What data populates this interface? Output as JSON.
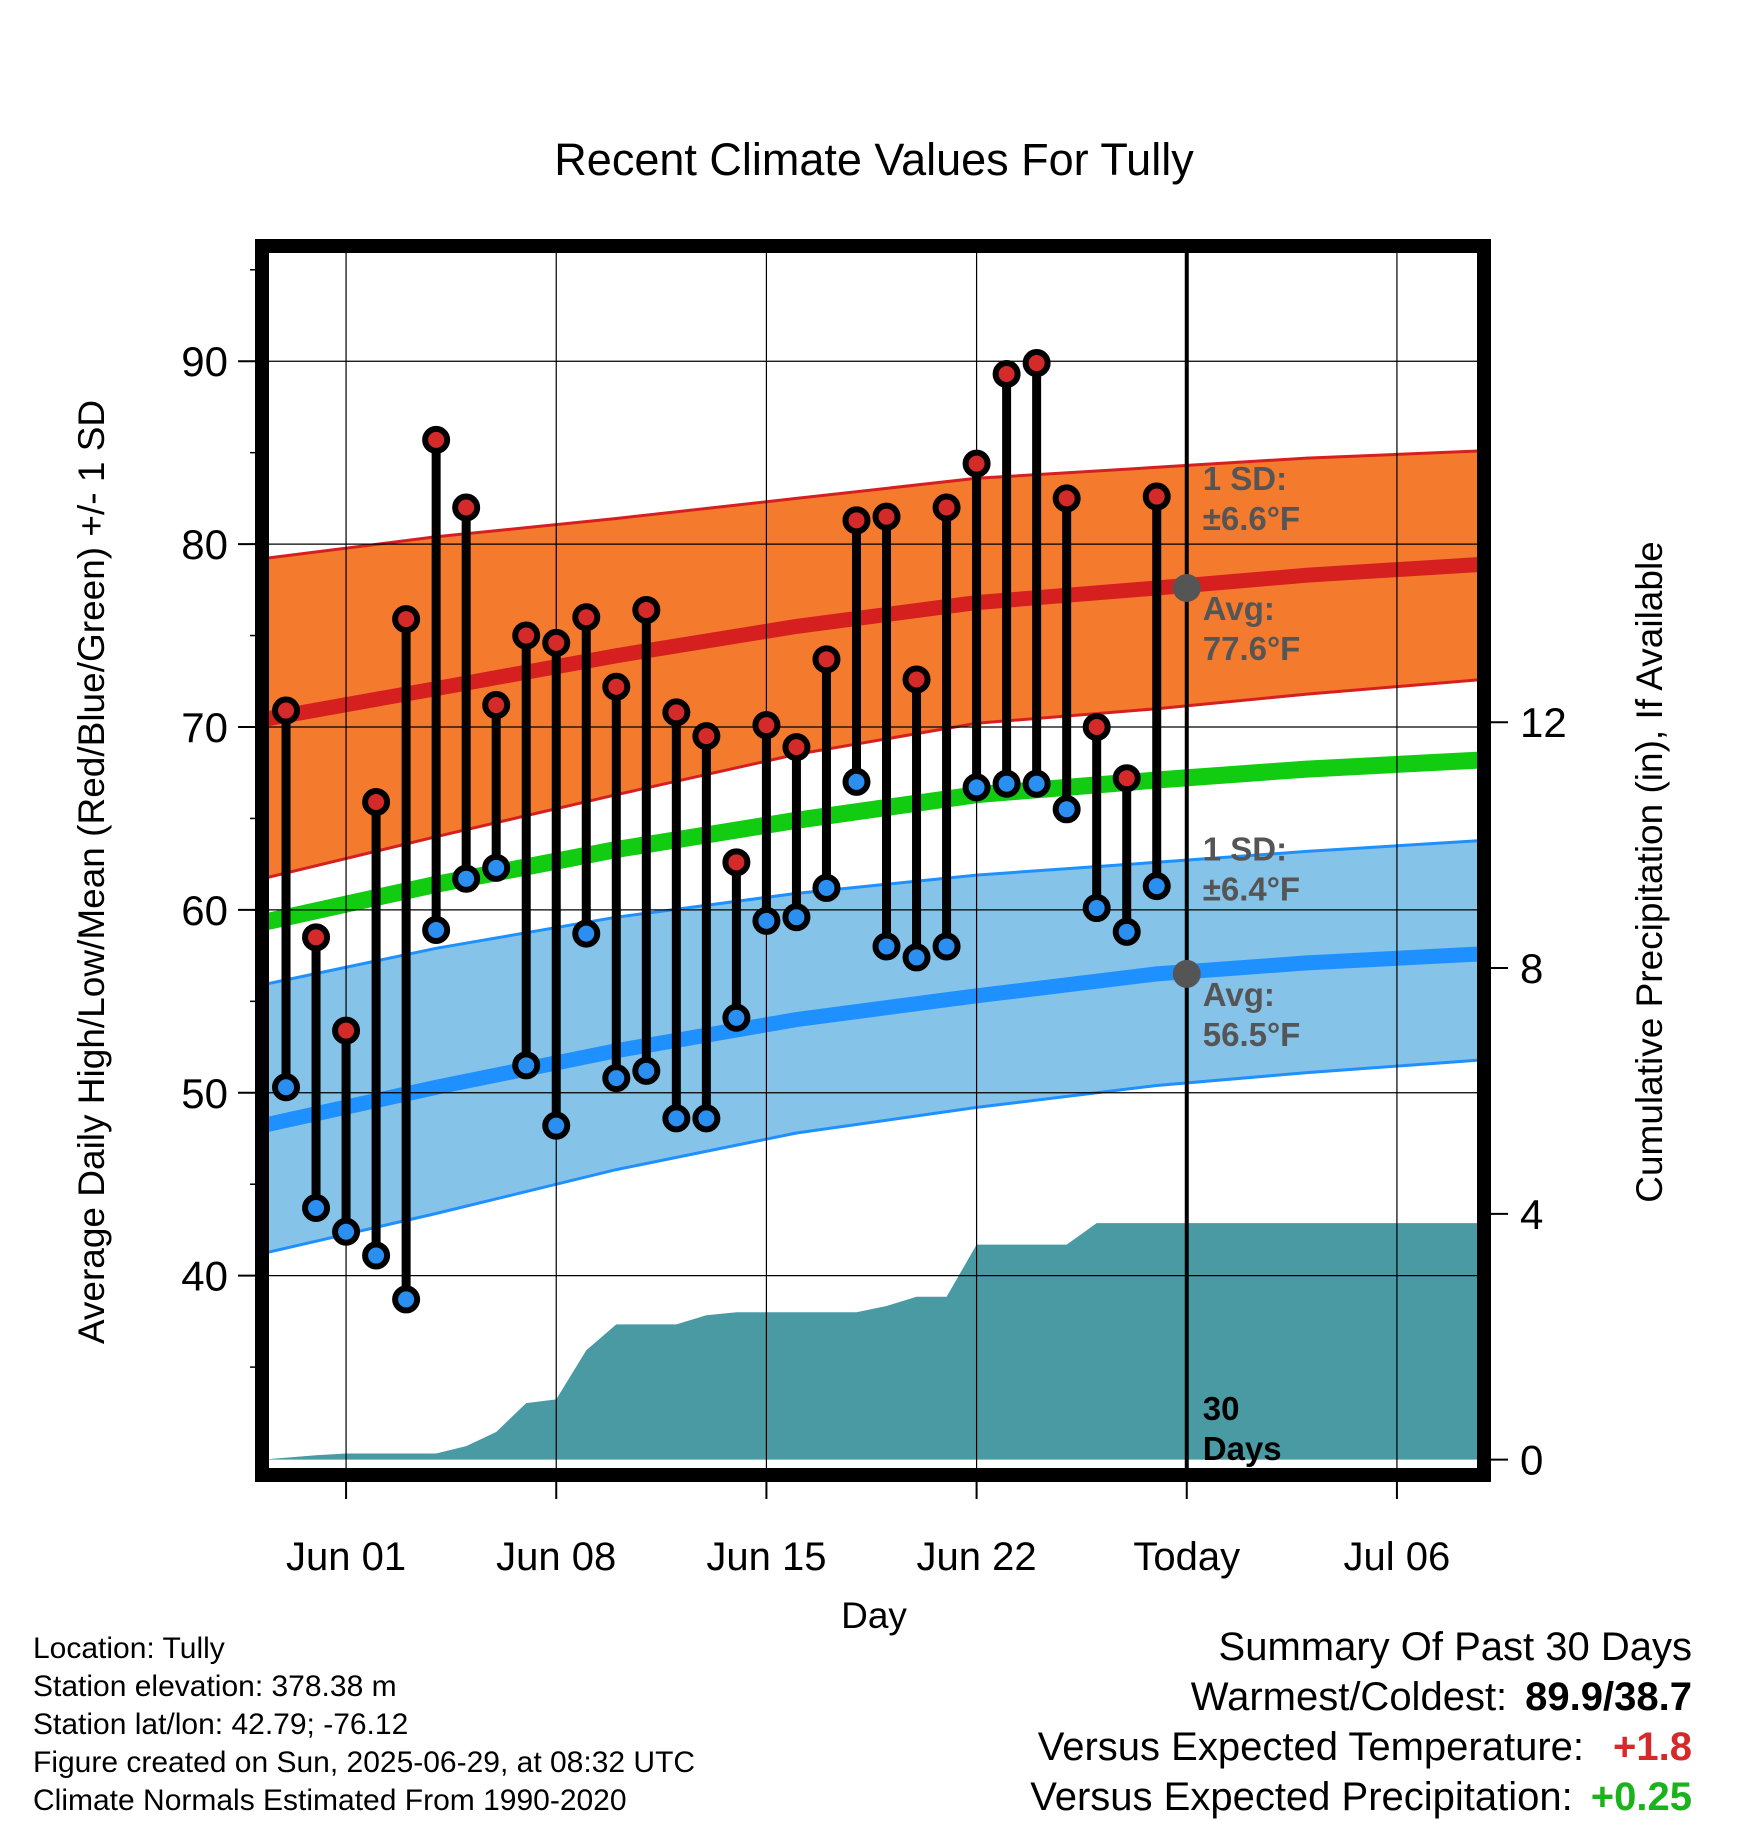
{
  "chart_data": {
    "type": "line",
    "title": "Recent Climate Values For Tully",
    "xlabel": "Day",
    "ylabel": "Average Daily High/Low/Mean (Red/Blue/Green) +/- 1 SD",
    "y2label": "Cumulative Precipitation (in), If Available",
    "x_tick_labels": [
      "Jun 01",
      "Jun 08",
      "Jun 15",
      "Jun 22",
      "Today",
      "Jul 06"
    ],
    "x_tick_days": [
      1,
      8,
      15,
      22,
      29,
      36
    ],
    "xlim": [
      -1.8,
      38.9
    ],
    "ylim": [
      29.1,
      96.3
    ],
    "y_ticks": [
      40,
      50,
      60,
      70,
      80,
      90
    ],
    "y2lim": [
      -0.25,
      19.75
    ],
    "y2_ticks": [
      0,
      4,
      8,
      12
    ],
    "grid": true,
    "today_day": 29,
    "today_label": [
      "30",
      "Days"
    ],
    "days": [
      -1,
      0,
      1,
      2,
      3,
      4,
      5,
      6,
      7,
      8,
      9,
      10,
      11,
      12,
      13,
      14,
      15,
      16,
      17,
      18,
      19,
      20,
      21,
      22,
      23,
      24,
      25,
      26,
      27,
      28
    ],
    "highs": [
      70.9,
      58.5,
      53.4,
      65.9,
      75.9,
      85.7,
      82.0,
      71.2,
      75.0,
      74.6,
      76.0,
      72.2,
      76.4,
      70.8,
      69.5,
      62.6,
      70.1,
      68.9,
      73.7,
      81.3,
      81.5,
      72.6,
      82.0,
      84.4,
      89.3,
      89.9,
      82.5,
      70.0,
      67.2,
      82.6
    ],
    "lows": [
      50.3,
      43.7,
      42.4,
      41.1,
      38.7,
      58.9,
      61.7,
      62.3,
      51.5,
      48.2,
      58.7,
      50.8,
      51.2,
      48.6,
      48.6,
      54.1,
      59.4,
      59.6,
      61.2,
      67.0,
      58.0,
      57.4,
      58.0,
      66.7,
      66.9,
      66.9,
      65.5,
      60.1,
      58.8,
      61.3
    ],
    "normal_high": {
      "days": [
        -1.8,
        4,
        10,
        16,
        22,
        28,
        33,
        38.9
      ],
      "mean": [
        70.4,
        72.1,
        73.9,
        75.5,
        76.8,
        77.6,
        78.3,
        78.9
      ],
      "upper": [
        79.2,
        80.4,
        81.4,
        82.5,
        83.6,
        84.2,
        84.7,
        85.1
      ],
      "lower": [
        61.7,
        64.0,
        66.3,
        68.5,
        70.2,
        71.0,
        71.8,
        72.6
      ]
    },
    "normal_mean": {
      "days": [
        -1.8,
        4,
        10,
        16,
        22,
        28,
        33,
        38.9
      ],
      "values": [
        59.3,
        61.4,
        63.3,
        64.9,
        66.3,
        67.1,
        67.7,
        68.2
      ]
    },
    "normal_low": {
      "days": [
        -1.8,
        4,
        10,
        16,
        22,
        28,
        33,
        38.9
      ],
      "mean": [
        48.2,
        50.3,
        52.3,
        54.0,
        55.3,
        56.5,
        57.1,
        57.6
      ],
      "upper": [
        55.9,
        57.9,
        59.6,
        60.9,
        61.9,
        62.6,
        63.2,
        63.8
      ],
      "lower": [
        41.2,
        43.4,
        45.8,
        47.8,
        49.2,
        50.4,
        51.1,
        51.8
      ]
    },
    "precip": {
      "days": [
        -1.8,
        0,
        1,
        2,
        3,
        4,
        5,
        6,
        7,
        8,
        9,
        10,
        11,
        12,
        13,
        14,
        15,
        16,
        17,
        18,
        19,
        20,
        21,
        22,
        23,
        24,
        25,
        26,
        27,
        28,
        29,
        38.9
      ],
      "values": [
        0,
        0.07,
        0.1,
        0.1,
        0.1,
        0.1,
        0.22,
        0.45,
        0.92,
        0.98,
        1.78,
        2.2,
        2.2,
        2.2,
        2.35,
        2.4,
        2.4,
        2.4,
        2.4,
        2.4,
        2.5,
        2.65,
        2.65,
        3.5,
        3.5,
        3.5,
        3.5,
        3.85,
        3.85,
        3.85,
        3.85,
        3.85
      ]
    },
    "annotations": {
      "high_sd": [
        "1 SD:",
        "±6.6°F"
      ],
      "high_avg": [
        "Avg:",
        "77.6°F"
      ],
      "high_avg_value": 77.6,
      "low_sd": [
        "1 SD:",
        "±6.4°F"
      ],
      "low_avg": [
        "Avg:",
        "56.5°F"
      ],
      "low_avg_value": 56.5
    }
  },
  "colors": {
    "high_band": "#f47a2e",
    "high_edge": "#d62020",
    "low_band": "#86c3e8",
    "low_edge": "#1e90ff",
    "mean_line": "#11cc11",
    "precip": "#4a9aa3",
    "high_dot": "#d42a2a",
    "low_dot": "#2a8ff0",
    "annotation": "#555555",
    "positive_temp": "#d42a2a",
    "positive_precip": "#1bb31b"
  },
  "info": {
    "location": "Location: Tully",
    "elevation": "Station elevation: 378.38 m",
    "latlon": "Station lat/lon: 42.79; -76.12",
    "created": "Figure created on Sun, 2025-06-29, at 08:32 UTC",
    "normals": "Climate Normals Estimated From 1990-2020"
  },
  "summary": {
    "title": "Summary Of Past 30 Days",
    "warmest_label": "Warmest/Coldest:",
    "warmest_value": "89.9/38.7",
    "temp_label": "Versus Expected Temperature:",
    "temp_value": "+1.8",
    "precip_label": "Versus Expected Precipitation:",
    "precip_value": "+0.25"
  }
}
